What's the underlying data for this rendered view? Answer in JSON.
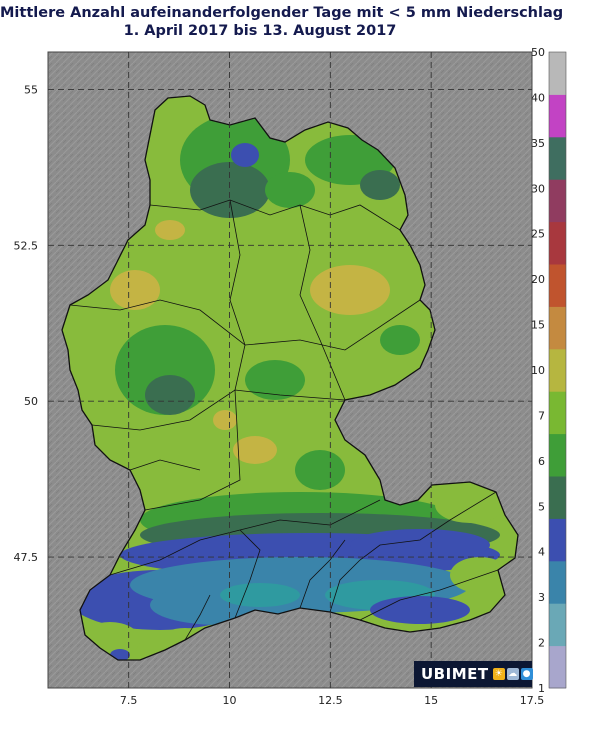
{
  "title": {
    "line1": "Mittlere Anzahl aufeinanderfolgender Tage mit < 5 mm Niederschlag",
    "line2": "1. April 2017 bis 13. August 2017"
  },
  "axes": {
    "lat_ticks": [
      "55",
      "52.5",
      "50",
      "47.5"
    ],
    "lon_ticks": [
      "7.5",
      "10",
      "12.5",
      "15",
      "17.5"
    ],
    "lat_values": [
      55,
      52.5,
      50,
      47.5
    ],
    "lon_values": [
      7.5,
      10,
      12.5,
      15,
      17.5
    ],
    "lat_range": [
      45.4,
      55.6
    ],
    "lon_range": [
      5.5,
      17.5
    ],
    "gridlines": "dashed"
  },
  "colorbar": {
    "labels": [
      "50",
      "40",
      "35",
      "30",
      "25",
      "20",
      "15",
      "10",
      "7",
      "6",
      "5",
      "4",
      "3",
      "2",
      "1"
    ],
    "colors": [
      "#a8a6cc",
      "#6aa8b6",
      "#3a84aa",
      "#3c4fb0",
      "#3a6e50",
      "#3f9e38",
      "#79b832",
      "#b6b640",
      "#c48a40",
      "#c0542e",
      "#a8383e",
      "#903c60",
      "#3f6e60",
      "#c243c4",
      "#b8b8b8"
    ]
  },
  "map_colors": {
    "terrain_background": "#8a8a8a",
    "base": "#88bb3c",
    "dark_green": "#3f9e38",
    "teal_green": "#3a6e50",
    "blue": "#3c4fb0",
    "light_blue": "#3a84aa",
    "cyan": "#2f9aa0",
    "yellow": "#c4b444",
    "border": "#111111"
  },
  "logo": {
    "text": "UBIMET",
    "icons": [
      "sun-icon",
      "cloud-icon",
      "drop-icon"
    ],
    "icon_colors": [
      "#f1b21a",
      "#9fb8d6",
      "#2f8fd8"
    ]
  }
}
